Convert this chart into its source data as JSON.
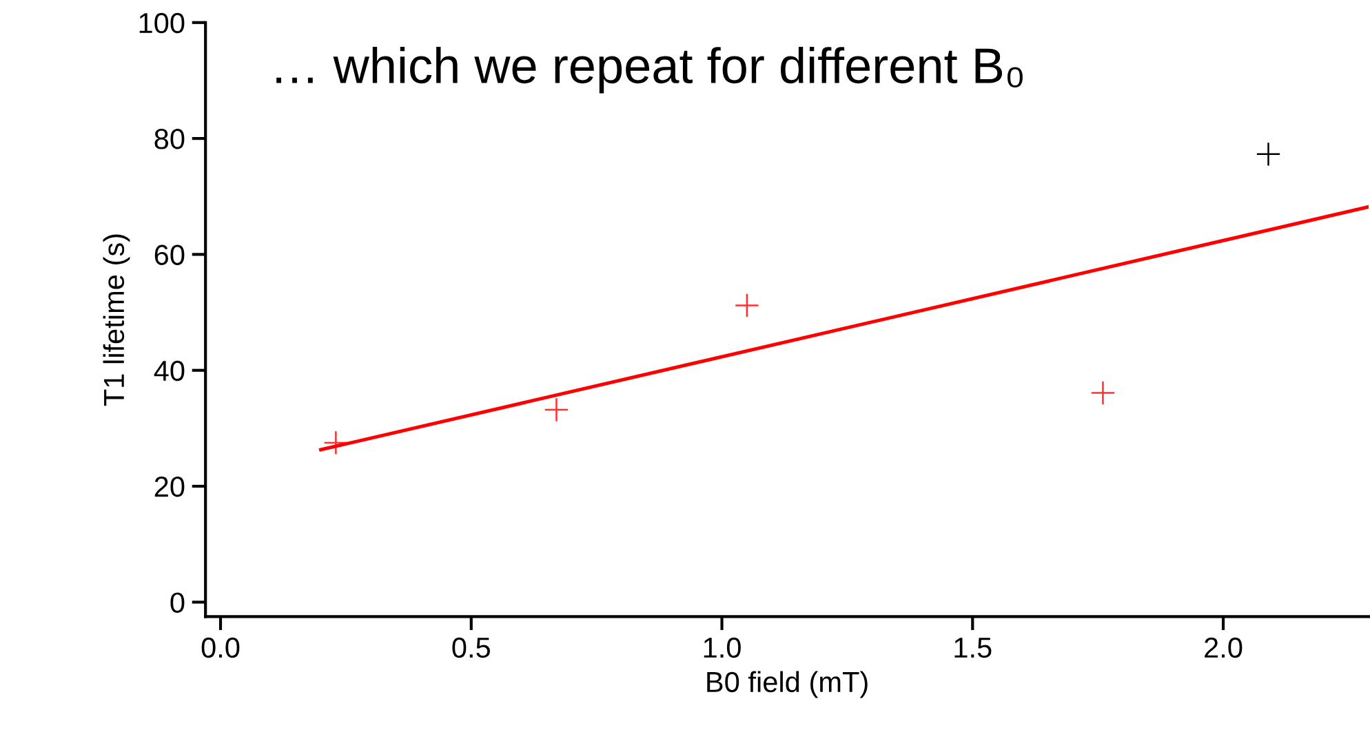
{
  "chart_data": {
    "type": "scatter",
    "xlabel": "B0 field (mT)",
    "ylabel": "T1 lifetime (s)",
    "annotations": [
      "… which we repeat for different B₀"
    ],
    "xlim": [
      -0.03,
      2.29
    ],
    "ylim": [
      -2.5,
      100
    ],
    "xticks": [
      {
        "value": 0,
        "label": "0.0"
      },
      {
        "value": 0.5,
        "label": "0.5"
      },
      {
        "value": 1,
        "label": "1.0"
      },
      {
        "value": 1.5,
        "label": "1.5"
      },
      {
        "value": 2,
        "label": "2.0"
      }
    ],
    "yticks": [
      0,
      20,
      40,
      60,
      80,
      100
    ],
    "grid": false,
    "series": [
      {
        "marker": "cross",
        "x": [
          0.23,
          0.67,
          1.05,
          1.76,
          2.09
        ],
        "values": [
          27.5,
          33.2,
          51.2,
          36.1,
          77.3
        ],
        "colors": [
          "#ff3030",
          "#ff3030",
          "#ff3030",
          "#ff3030",
          "#000000"
        ]
      },
      {
        "type": "line",
        "color": "#ff0000",
        "x": [
          0.2,
          2.29
        ],
        "values": [
          26.3,
          68.2
        ]
      }
    ]
  }
}
